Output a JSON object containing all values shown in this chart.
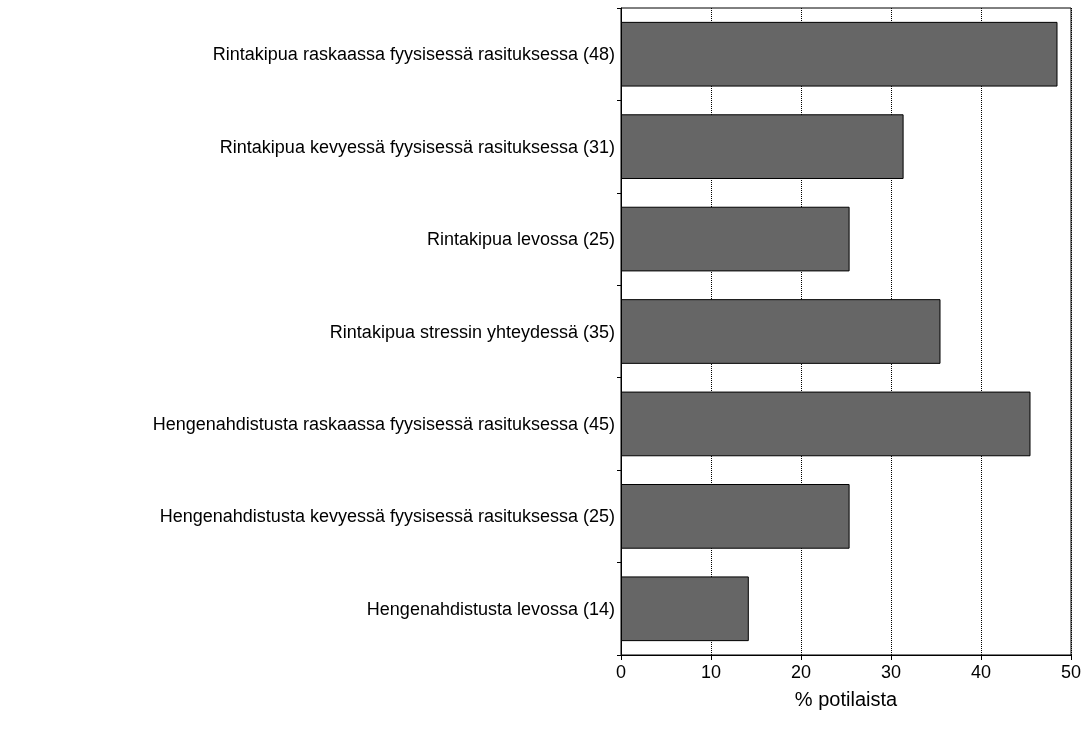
{
  "chart_data": {
    "type": "bar",
    "orientation": "horizontal",
    "xlabel": "% potilaista",
    "categories": [
      "Rintakipua raskaassa fyysisessä rasituksessa (48)",
      "Rintakipua kevyessä fyysisessä rasituksessa (31)",
      "Rintakipua levossa (25)",
      "Rintakipua stressin yhteydessä (35)",
      "Hengenahdistusta raskaassa fyysisessä rasituksessa (45)",
      "Hengenahdistusta kevyessä fyysisessä rasituksessa (25)",
      "Hengenahdistusta levossa (14)"
    ],
    "values": [
      48.5,
      31.4,
      25.4,
      35.5,
      45.5,
      25.4,
      14.2
    ],
    "color": "#666666",
    "xlim": [
      0,
      50
    ],
    "xticks": [
      0,
      10,
      20,
      30,
      40,
      50
    ],
    "grid": "x"
  }
}
